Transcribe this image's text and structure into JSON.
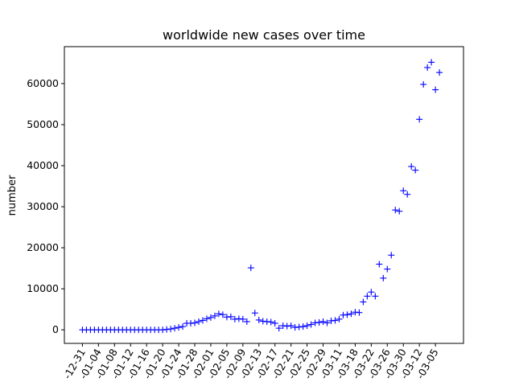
{
  "chart_data": {
    "type": "scatter",
    "title": "worldwide new cases over time",
    "xlabel": "",
    "ylabel": "number",
    "marker": "+",
    "color": "#0000ff",
    "grid": false,
    "ylim": [
      -3300,
      69000
    ],
    "y_ticks": [
      0,
      10000,
      20000,
      30000,
      40000,
      50000,
      60000
    ],
    "x_tick_labels": [
      "-12-31",
      "-01-04",
      "-01-08",
      "-01-12",
      "-01-16",
      "-01-20",
      "-01-24",
      "-01-28",
      "-02-01",
      "-02-05",
      "-02-09",
      "-02-13",
      "-02-17",
      "-02-21",
      "-02-25",
      "-02-29",
      "-03-11",
      "-03-18",
      "-03-22",
      "-03-26",
      "-03-30",
      "-03-12",
      "-03-05"
    ],
    "x_tick_positions": [
      0,
      4,
      8,
      12,
      16,
      20,
      24,
      28,
      32,
      36,
      40,
      44,
      48,
      52,
      56,
      60,
      64,
      68,
      72,
      76,
      80,
      84,
      88
    ],
    "x_range": [
      -4.5,
      95
    ],
    "x": [
      0,
      1,
      2,
      3,
      4,
      5,
      6,
      7,
      8,
      9,
      10,
      11,
      12,
      13,
      14,
      15,
      16,
      17,
      18,
      19,
      20,
      21,
      22,
      23,
      24,
      25,
      26,
      27,
      28,
      29,
      30,
      31,
      32,
      33,
      34,
      35,
      36,
      37,
      38,
      39,
      40,
      41,
      42,
      43,
      44,
      45,
      46,
      47,
      48,
      49,
      50,
      51,
      52,
      53,
      54,
      55,
      56,
      57,
      58,
      59,
      60,
      61,
      62,
      63,
      64,
      65,
      66,
      67,
      68,
      69,
      70,
      71,
      72,
      73,
      74,
      75,
      76,
      77,
      78,
      79,
      80,
      81,
      82,
      83,
      84,
      85,
      86,
      87,
      88,
      89
    ],
    "values": [
      0,
      0,
      0,
      0,
      0,
      0,
      0,
      0,
      0,
      0,
      0,
      0,
      0,
      0,
      0,
      0,
      0,
      0,
      0,
      0,
      0,
      100,
      200,
      400,
      600,
      800,
      1600,
      1600,
      1700,
      2000,
      2300,
      2700,
      3000,
      3400,
      3900,
      3700,
      3100,
      3200,
      2600,
      2700,
      2600,
      2000,
      15100,
      4100,
      2400,
      2100,
      2000,
      1900,
      1600,
      400,
      1000,
      900,
      1000,
      600,
      700,
      800,
      1000,
      1300,
      1700,
      1800,
      2000,
      1700,
      2200,
      2300,
      2600,
      3600,
      3700,
      3900,
      4300,
      4200,
      6800,
      8200,
      9200,
      8200,
      16000,
      12600,
      14800,
      18200,
      29200,
      28900,
      33900,
      33000,
      39800,
      38900,
      51300,
      59800,
      63900,
      65200,
      58500,
      62700
    ]
  }
}
